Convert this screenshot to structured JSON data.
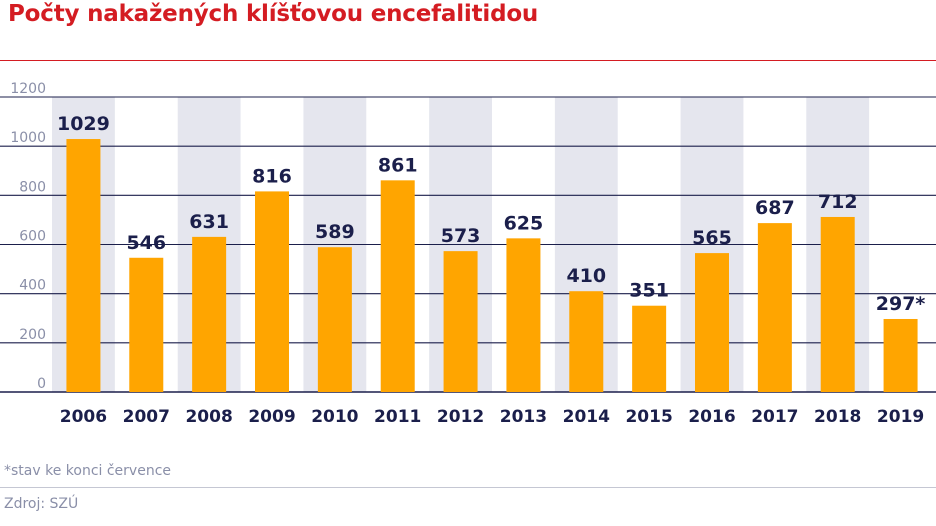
{
  "colors": {
    "title": "#d41c22",
    "bar": "#ffa500",
    "band": "#e5e6ee",
    "text_dark": "#1b1f4b",
    "axis_text": "#8a8fa8"
  },
  "chart_data": {
    "type": "bar",
    "title": "Počty nakažených klíšťovou encefalitidou",
    "categories": [
      "2006",
      "2007",
      "2008",
      "2009",
      "2010",
      "2011",
      "2012",
      "2013",
      "2014",
      "2015",
      "2016",
      "2017",
      "2018",
      "2019"
    ],
    "values": [
      1029,
      546,
      631,
      816,
      589,
      861,
      573,
      625,
      410,
      351,
      565,
      687,
      712,
      297
    ],
    "value_labels": [
      "1029",
      "546",
      "631",
      "816",
      "589",
      "861",
      "573",
      "625",
      "410",
      "351",
      "565",
      "687",
      "712",
      "297*"
    ],
    "ylim": [
      0,
      1200
    ],
    "yticks": [
      0,
      200,
      400,
      600,
      800,
      1000,
      1200
    ],
    "grid": true,
    "alternating_bands": true
  },
  "footnote": "*stav ke konci července",
  "source": "Zdroj: SZÚ"
}
